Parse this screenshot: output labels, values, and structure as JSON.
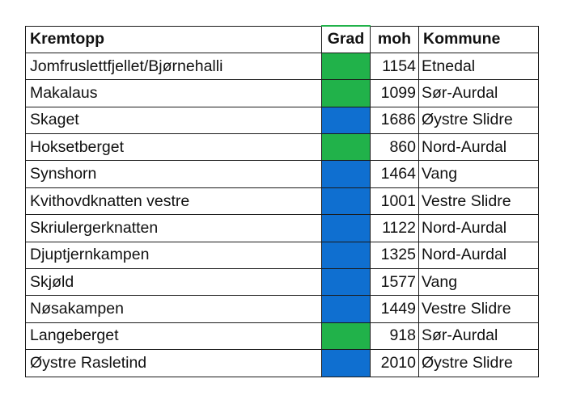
{
  "headers": {
    "name": "Kremtopp",
    "grad": "Grad",
    "moh": "moh",
    "kommune": "Kommune"
  },
  "colors": {
    "green": "#21b24a",
    "blue": "#0f6fd0"
  },
  "rows": [
    {
      "name": "Jomfruslettfjellet/Bjørnehalli",
      "grad": "green",
      "moh": "1154",
      "kommune": "Etnedal"
    },
    {
      "name": "Makalaus",
      "grad": "green",
      "moh": "1099",
      "kommune": "Sør-Aurdal"
    },
    {
      "name": "Skaget",
      "grad": "blue",
      "moh": "1686",
      "kommune": "Øystre Slidre"
    },
    {
      "name": "Hoksetberget",
      "grad": "green",
      "moh": "860",
      "kommune": "Nord-Aurdal"
    },
    {
      "name": "Synshorn",
      "grad": "blue",
      "moh": "1464",
      "kommune": "Vang"
    },
    {
      "name": "Kvithovdknatten vestre",
      "grad": "blue",
      "moh": "1001",
      "kommune": "Vestre Slidre"
    },
    {
      "name": "Skriulergerknatten",
      "grad": "blue",
      "moh": "1122",
      "kommune": "Nord-Aurdal"
    },
    {
      "name": "Djuptjernkampen",
      "grad": "blue",
      "moh": "1325",
      "kommune": "Nord-Aurdal"
    },
    {
      "name": "Skjøld",
      "grad": "blue",
      "moh": "1577",
      "kommune": "Vang"
    },
    {
      "name": "Nøsakampen",
      "grad": "blue",
      "moh": "1449",
      "kommune": "Vestre Slidre"
    },
    {
      "name": "Langeberget",
      "grad": "green",
      "moh": "918",
      "kommune": "Sør-Aurdal"
    },
    {
      "name": "Øystre Rasletind",
      "grad": "blue",
      "moh": "2010",
      "kommune": "Øystre Slidre"
    }
  ]
}
